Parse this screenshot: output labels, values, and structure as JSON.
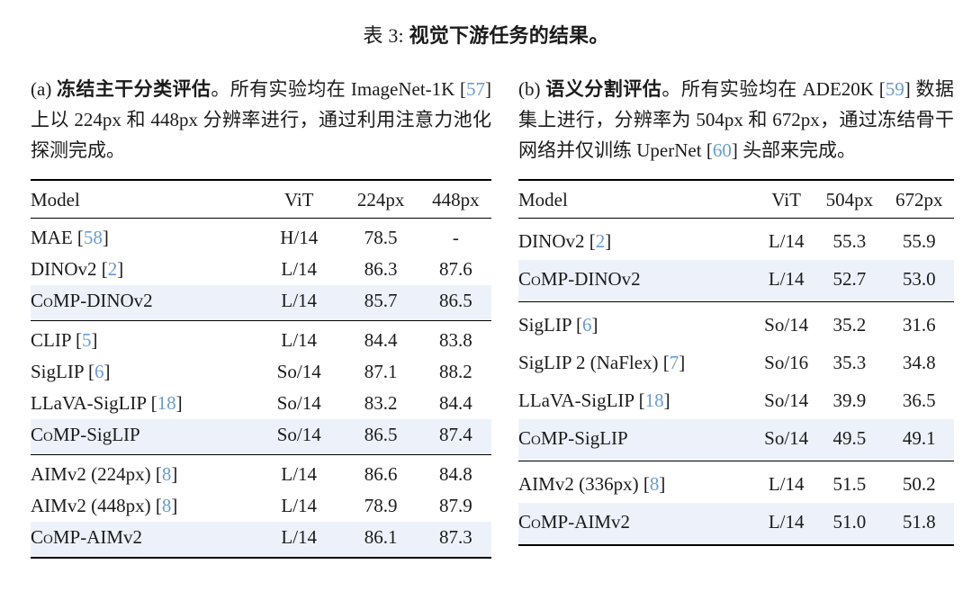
{
  "title": {
    "prefix": "表 3:",
    "bold": "视觉下游任务的结果。"
  },
  "punct": {
    "open": "[",
    "close": "]"
  },
  "colors": {
    "citation_link": "#689bd2",
    "row_highlight": "#edf2fa",
    "text": "#1b1b1b"
  },
  "panels": [
    {
      "caption": {
        "label": "(a) ",
        "bold": "冻结主干分类评估",
        "segments": [
          {
            "t": "。所有实验均在 ImageNet-1K "
          },
          {
            "cite": "57"
          },
          {
            "t": " 上以 224px 和 448px 分辨率进行，通过利用注意力池化探测完成。"
          }
        ]
      },
      "table": {
        "headers": [
          "Model",
          "ViT",
          "224px",
          "448px"
        ],
        "groups": [
          {
            "rows": [
              {
                "name": "MAE ",
                "cite": "58",
                "vit": "H/14",
                "r1": "78.5",
                "r2": "-"
              },
              {
                "name": "DINOv2 ",
                "cite": "2",
                "vit": "L/14",
                "r1": "86.3",
                "r2": "87.6"
              },
              {
                "sc": "CoMP",
                "name": "-DINOv2",
                "vit": "L/14",
                "r1": "85.7",
                "r2": "86.5"
              }
            ]
          },
          {
            "rows": [
              {
                "name": "CLIP ",
                "cite": "5",
                "vit": "L/14",
                "r1": "84.4",
                "r2": "83.8"
              },
              {
                "name": "SigLIP ",
                "cite": "6",
                "vit": "So/14",
                "r1": "87.1",
                "r2": "88.2"
              },
              {
                "name": "LLaVA-SigLIP ",
                "cite": "18",
                "vit": "So/14",
                "r1": "83.2",
                "r2": "84.4"
              },
              {
                "sc": "CoMP",
                "name": "-SigLIP",
                "vit": "So/14",
                "r1": "86.5",
                "r2": "87.4"
              }
            ]
          },
          {
            "rows": [
              {
                "name": "AIMv2 (224px) ",
                "cite": "8",
                "vit": "L/14",
                "r1": "86.6",
                "r2": "84.8"
              },
              {
                "name": "AIMv2 (448px) ",
                "cite": "8",
                "vit": "L/14",
                "r1": "78.9",
                "r2": "87.9"
              },
              {
                "sc": "CoMP",
                "name": "-AIMv2",
                "vit": "L/14",
                "r1": "86.1",
                "r2": "87.3"
              }
            ]
          }
        ]
      }
    },
    {
      "caption": {
        "label": "(b) ",
        "bold": "语义分割评估",
        "segments": [
          {
            "t": "。所有实验均在 ADE20K "
          },
          {
            "cite": "59"
          },
          {
            "t": " 数据集上进行，分辨率为 504px 和 672px，通过冻结骨干网络并仅训练 UperNet "
          },
          {
            "cite": "60"
          },
          {
            "t": " 头部来完成。"
          }
        ]
      },
      "table": {
        "headers": [
          "Model",
          "ViT",
          "504px",
          "672px"
        ],
        "groups": [
          {
            "rows": [
              {
                "name": "DINOv2 ",
                "cite": "2",
                "vit": "L/14",
                "r1": "55.3",
                "r2": "55.9"
              },
              {
                "sc": "CoMP",
                "name": "-DINOv2",
                "vit": "L/14",
                "r1": "52.7",
                "r2": "53.0"
              }
            ]
          },
          {
            "rows": [
              {
                "name": "SigLIP ",
                "cite": "6",
                "vit": "So/14",
                "r1": "35.2",
                "r2": "31.6"
              },
              {
                "name": "SigLIP 2 (NaFlex) ",
                "cite": "7",
                "vit": "So/16",
                "r1": "35.3",
                "r2": "34.8"
              },
              {
                "name": "LLaVA-SigLIP ",
                "cite": "18",
                "vit": "So/14",
                "r1": "39.9",
                "r2": "36.5"
              },
              {
                "sc": "CoMP",
                "name": "-SigLIP",
                "vit": "So/14",
                "r1": "49.5",
                "r2": "49.1"
              }
            ]
          },
          {
            "rows": [
              {
                "name": "AIMv2 (336px) ",
                "cite": "8",
                "vit": "L/14",
                "r1": "51.5",
                "r2": "50.2"
              },
              {
                "sc": "CoMP",
                "name": "-AIMv2",
                "vit": "L/14",
                "r1": "51.0",
                "r2": "51.8"
              }
            ]
          }
        ]
      }
    }
  ]
}
